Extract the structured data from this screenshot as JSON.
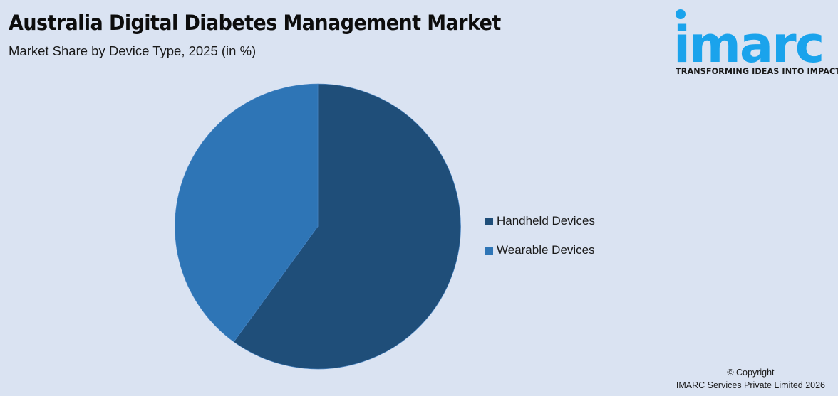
{
  "header": {
    "title": "Australia Digital Diabetes Management Market",
    "subtitle": "Market Share by Device Type, 2025 (in %)"
  },
  "logo": {
    "wordmark": "imarc",
    "tagline": "TRANSFORMING IDEAS INTO IMPACT",
    "color": "#1aa3ec"
  },
  "legend": {
    "items": [
      {
        "label": "Handheld Devices",
        "color": "#1f4e79"
      },
      {
        "label": "Wearable Devices",
        "color": "#2e75b6"
      }
    ]
  },
  "footer": {
    "copyright": "© Copyright",
    "company": "IMARC Services Private Limited 2026"
  },
  "chart_data": {
    "type": "pie",
    "title": "Australia Digital Diabetes Management Market",
    "subtitle": "Market Share by Device Type, 2025 (in %)",
    "categories": [
      "Handheld Devices",
      "Wearable Devices"
    ],
    "values": [
      60,
      40
    ],
    "colors": [
      "#1f4e79",
      "#2e75b6"
    ],
    "start_angle_deg": 0,
    "direction": "clockwise",
    "data_labels": false,
    "legend_position": "right"
  }
}
